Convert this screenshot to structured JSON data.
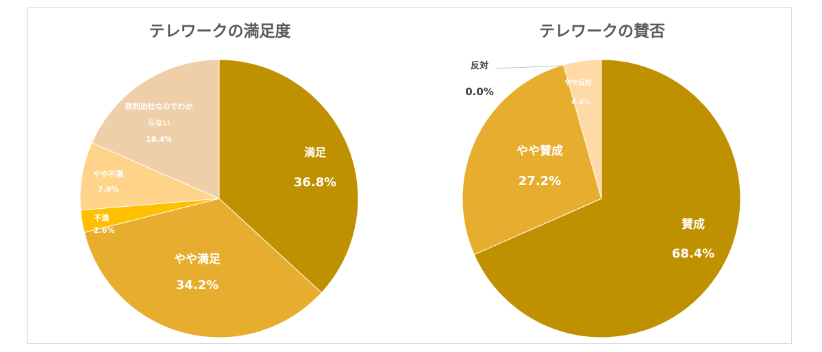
{
  "chart_data": [
    {
      "type": "pie",
      "title": "テレワークの満足度",
      "slices": [
        {
          "label": "満足",
          "value_text": "36.8%",
          "value": 36.8,
          "color": "#bf9000"
        },
        {
          "label": "やや満足",
          "value_text": "34.2%",
          "value": 34.2,
          "color": "#e6ad2e"
        },
        {
          "label": "不満",
          "value_text": "2.6%",
          "value": 2.6,
          "color": "#ffc000"
        },
        {
          "label": "やや不満",
          "value_text": "7.9%",
          "value": 7.9,
          "color": "#ffd38a"
        },
        {
          "label": "原則出社なのでわからない",
          "label_lines": [
            "原則出社なのでわか",
            "らない"
          ],
          "value_text": "18.4%",
          "value": 18.4,
          "color": "#efcfa9"
        }
      ]
    },
    {
      "type": "pie",
      "title": "テレワークの賛否",
      "slices": [
        {
          "label": "賛成",
          "value_text": "68.4%",
          "value": 68.4,
          "color": "#bf9000"
        },
        {
          "label": "やや賛成",
          "value_text": "27.2%",
          "value": 27.2,
          "color": "#e6ad2e"
        },
        {
          "label": "反対",
          "value_text": "0.0%",
          "value": 0.0,
          "color": "#ffc000"
        },
        {
          "label": "やや反対",
          "value_text": "4.4%",
          "value": 4.4,
          "color": "#ffd9a6"
        }
      ]
    }
  ]
}
